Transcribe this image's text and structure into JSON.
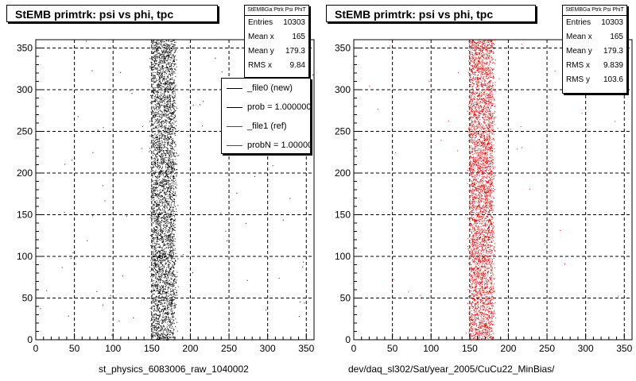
{
  "panels": [
    {
      "title": "StEMB primtrk: psi vs phi, tpc",
      "stats": {
        "header": "StEMBGa Ptrk Psi PhiT",
        "rows": [
          {
            "label": "Entries",
            "value": "10303"
          },
          {
            "label": "Mean x",
            "value": "165"
          },
          {
            "label": "Mean y",
            "value": "179.3"
          },
          {
            "label": "RMS x",
            "value": "9.84"
          }
        ]
      },
      "legend": [
        {
          "text": "_file0 (new)",
          "color": "#000000"
        },
        {
          "text": "prob = 1.000000",
          "color": "#000000"
        },
        {
          "text": "_file1 (ref)",
          "color": "#ff0000"
        },
        {
          "text": "probN = 1.000000",
          "color": "#ff0000"
        }
      ],
      "xlabel": "st_physics_6083006_raw_1040002",
      "marker_color": "#000000"
    },
    {
      "title": "StEMB primtrk: psi vs phi, tpc",
      "stats": {
        "header": "StEMBGa Ptrk Psi PhiT",
        "rows": [
          {
            "label": "Entries",
            "value": "10303"
          },
          {
            "label": "Mean x",
            "value": "165"
          },
          {
            "label": "Mean y",
            "value": "179.3"
          },
          {
            "label": "RMS x",
            "value": "9.839"
          },
          {
            "label": "RMS y",
            "value": "103.6"
          }
        ]
      },
      "xlabel": "dev/daq_sl302/Sat/year_2005/CuCu22_MinBias/",
      "marker_color": "#ff0000"
    }
  ],
  "chart_data": [
    {
      "type": "scatter",
      "title": "StEMB primtrk: psi vs phi, tpc",
      "xlabel": "st_physics_6083006_raw_1040002",
      "ylabel": "",
      "xlim": [
        0,
        360
      ],
      "ylim": [
        0,
        360
      ],
      "xticks": [
        0,
        50,
        100,
        150,
        200,
        250,
        300,
        350
      ],
      "yticks": [
        0,
        50,
        100,
        150,
        200,
        250,
        300,
        350
      ],
      "grid": true,
      "entries": 10303,
      "mean_x": 165,
      "mean_y": 179.3,
      "rms_x": 9.84,
      "band_x_range": [
        150,
        180
      ],
      "color": "#000000"
    },
    {
      "type": "scatter",
      "title": "StEMB primtrk: psi vs phi, tpc",
      "xlabel": "dev/daq_sl302/Sat/year_2005/CuCu22_MinBias/",
      "ylabel": "",
      "xlim": [
        0,
        360
      ],
      "ylim": [
        0,
        360
      ],
      "xticks": [
        0,
        50,
        100,
        150,
        200,
        250,
        300,
        350
      ],
      "yticks": [
        0,
        50,
        100,
        150,
        200,
        250,
        300,
        350
      ],
      "grid": true,
      "entries": 10303,
      "mean_x": 165,
      "mean_y": 179.3,
      "rms_x": 9.839,
      "rms_y": 103.6,
      "band_x_range": [
        150,
        180
      ],
      "color": "#ff0000"
    }
  ]
}
